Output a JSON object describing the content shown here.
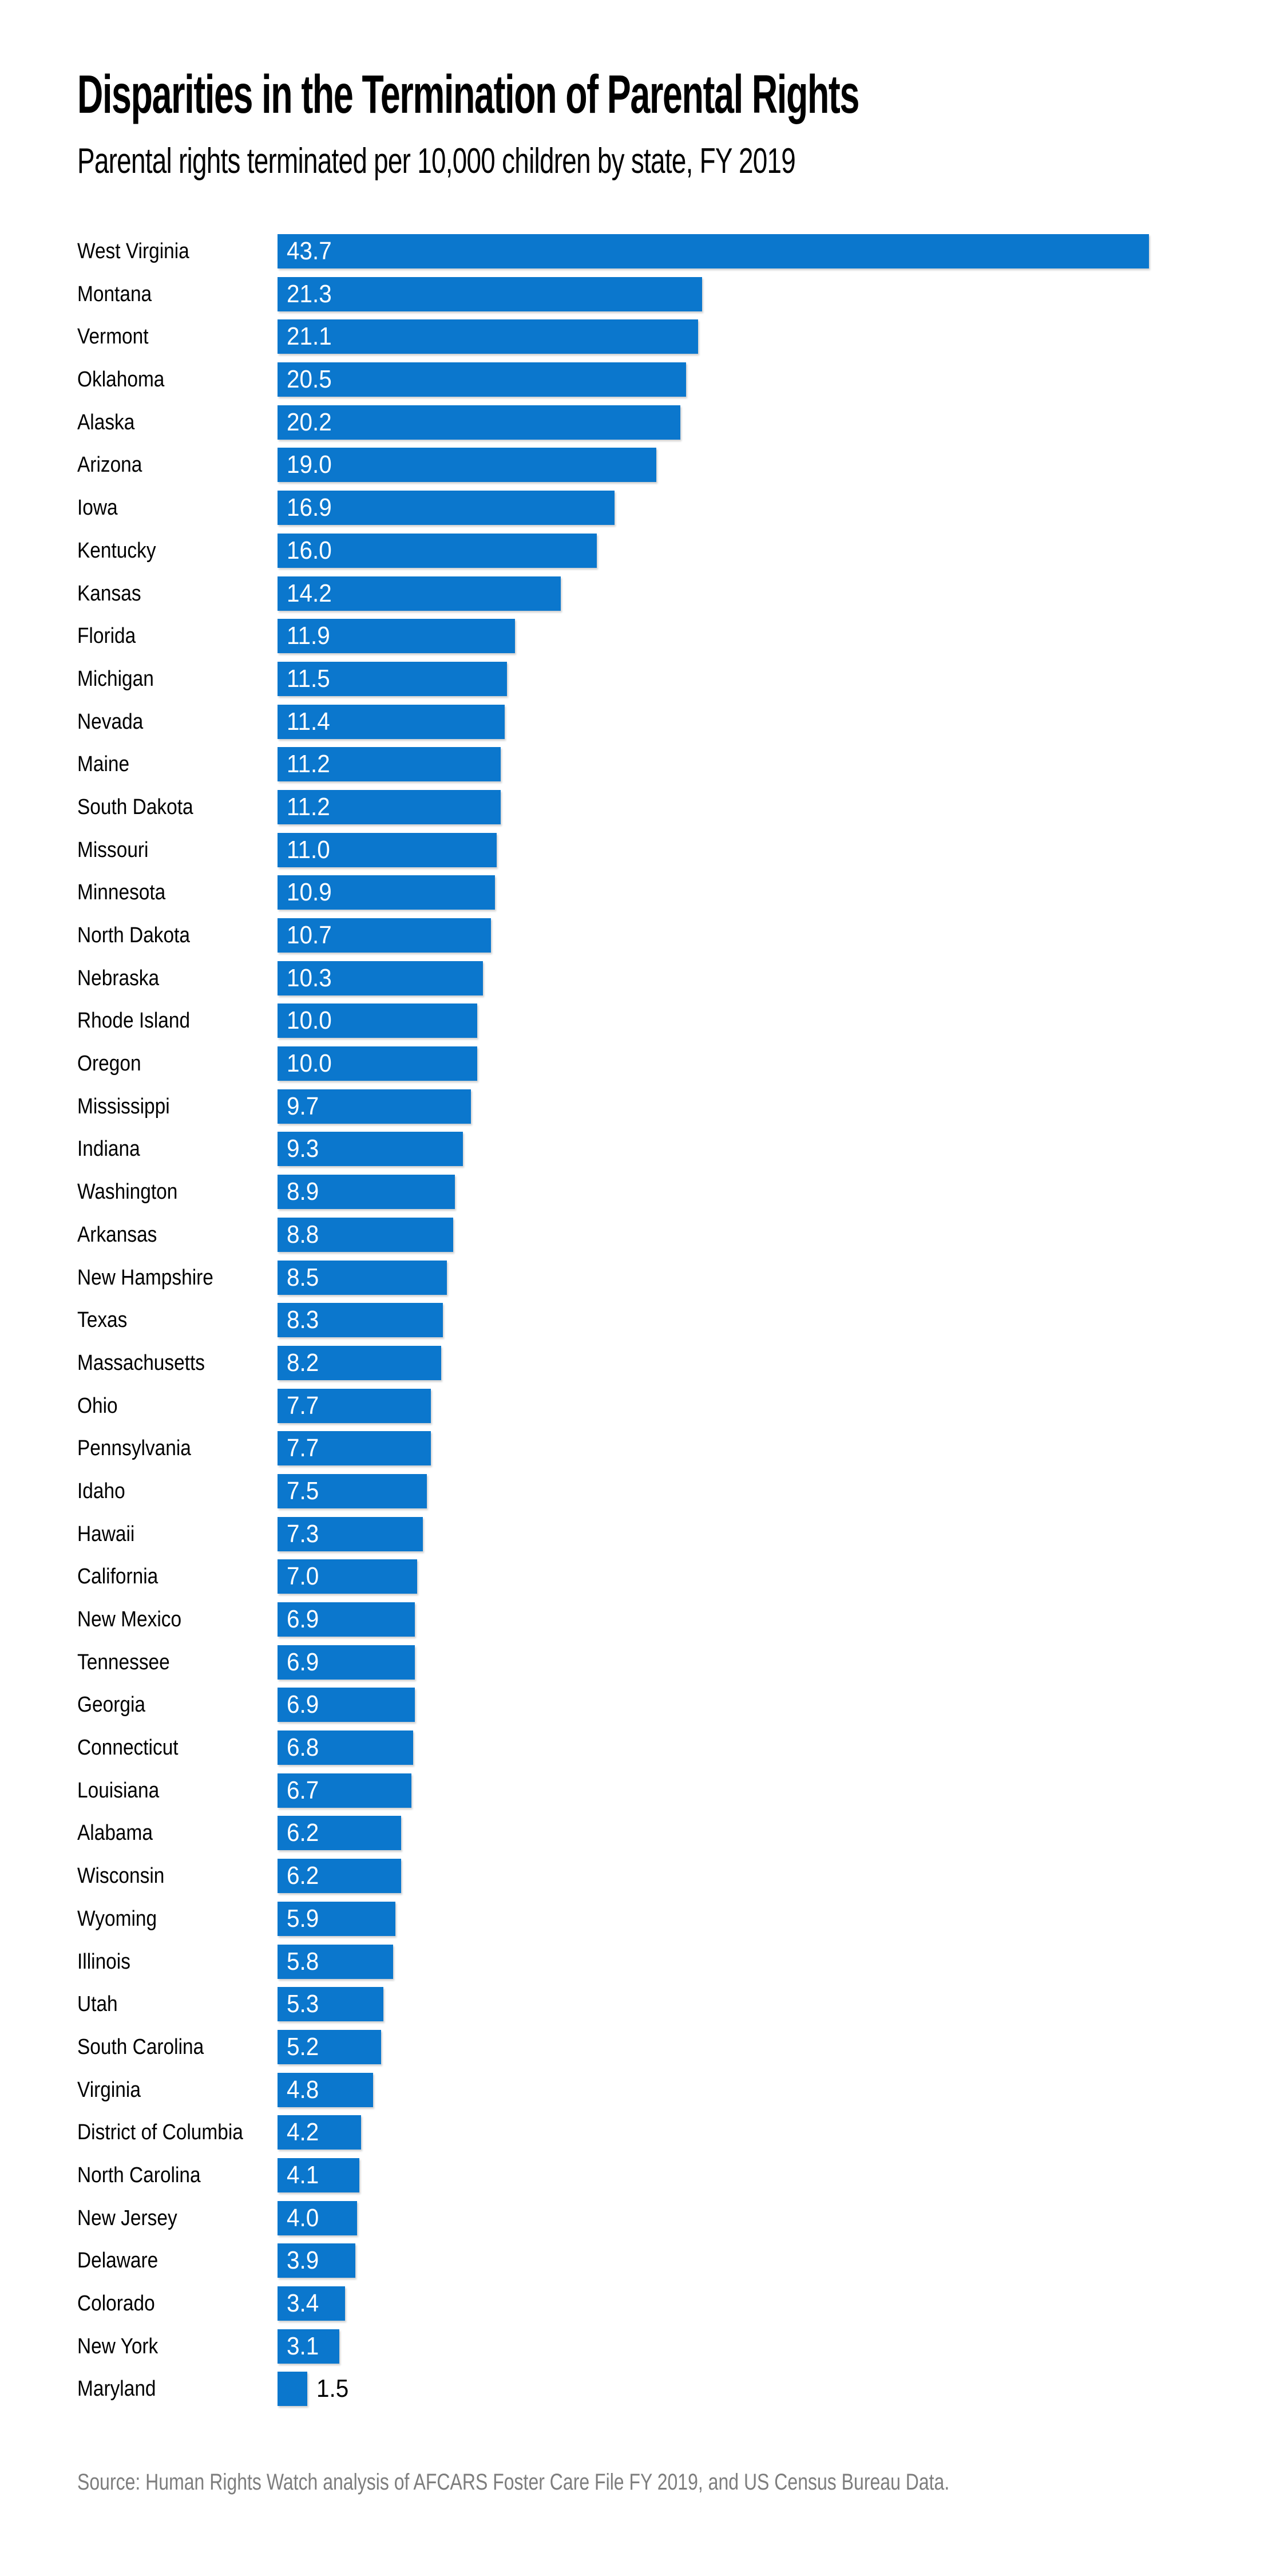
{
  "header": {
    "title": "Disparities in the Termination of Parental Rights",
    "subtitle": "Parental rights terminated per 10,000 children by state, FY 2019"
  },
  "chart_data": {
    "type": "bar",
    "orientation": "horizontal",
    "title": "Disparities in the Termination of Parental Rights",
    "subtitle": "Parental rights terminated per 10,000 children by state, FY 2019",
    "xlabel": "",
    "ylabel": "",
    "xlim": [
      0,
      43.7
    ],
    "grid": false,
    "legend": false,
    "bar_color": "#0b77cd",
    "value_label_inside_color": "#ffffff",
    "value_label_outside_color": "#000000",
    "value_decimals": 1,
    "categories": [
      "West Virginia",
      "Montana",
      "Vermont",
      "Oklahoma",
      "Alaska",
      "Arizona",
      "Iowa",
      "Kentucky",
      "Kansas",
      "Florida",
      "Michigan",
      "Nevada",
      "Maine",
      "South Dakota",
      "Missouri",
      "Minnesota",
      "North Dakota",
      "Nebraska",
      "Rhode Island",
      "Oregon",
      "Mississippi",
      "Indiana",
      "Washington",
      "Arkansas",
      "New Hampshire",
      "Texas",
      "Massachusetts",
      "Ohio",
      "Pennsylvania",
      "Idaho",
      "Hawaii",
      "California",
      "New Mexico",
      "Tennessee",
      "Georgia",
      "Connecticut",
      "Louisiana",
      "Alabama",
      "Wisconsin",
      "Wyoming",
      "Illinois",
      "Utah",
      "South Carolina",
      "Virginia",
      "District of Columbia",
      "North Carolina",
      "New Jersey",
      "Delaware",
      "Colorado",
      "New York",
      "Maryland"
    ],
    "values": [
      43.7,
      21.3,
      21.1,
      20.5,
      20.2,
      19.0,
      16.9,
      16.0,
      14.2,
      11.9,
      11.5,
      11.4,
      11.2,
      11.2,
      11.0,
      10.9,
      10.7,
      10.3,
      10.0,
      10.0,
      9.7,
      9.3,
      8.9,
      8.8,
      8.5,
      8.3,
      8.2,
      7.7,
      7.7,
      7.5,
      7.3,
      7.0,
      6.9,
      6.9,
      6.9,
      6.8,
      6.7,
      6.2,
      6.2,
      5.9,
      5.8,
      5.3,
      5.2,
      4.8,
      4.2,
      4.1,
      4.0,
      3.9,
      3.4,
      3.1,
      1.5
    ]
  },
  "footer": {
    "source": "Source: Human Rights Watch analysis of AFCARS Foster Care File FY 2019, and US Census Bureau Data."
  }
}
